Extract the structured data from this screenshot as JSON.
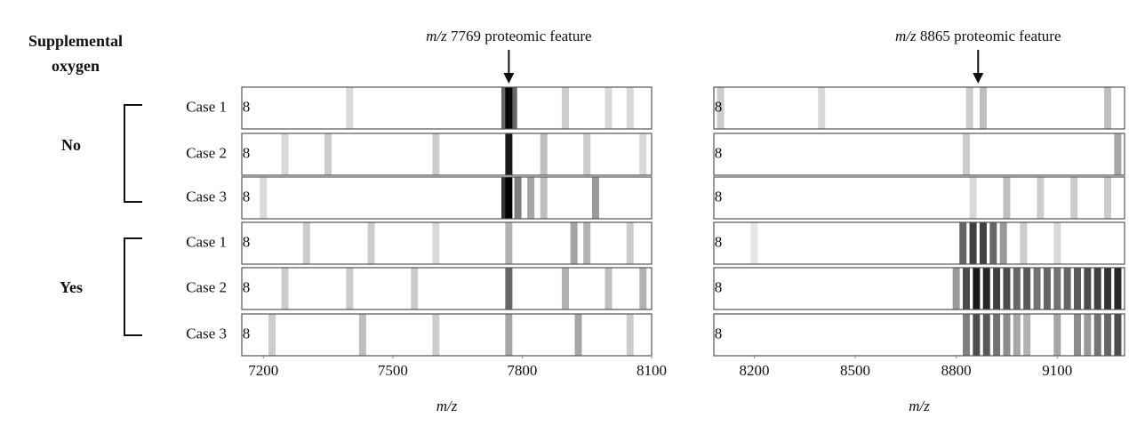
{
  "header": [
    "Supplemental",
    "oxygen"
  ],
  "groups": [
    {
      "label": "No",
      "cases": [
        "Case 1",
        "Case 2",
        "Case 3"
      ]
    },
    {
      "label": "Yes",
      "cases": [
        "Case 1",
        "Case 2",
        "Case 3"
      ]
    }
  ],
  "lane_marker": "8",
  "chart_data": [
    {
      "type": "gel",
      "title": "m/z 7769 proteomic feature",
      "annotation_x": 7769,
      "xlabel": "m/z",
      "xlim": [
        7150,
        8100
      ],
      "xticks": [
        7200,
        7500,
        7800,
        8100
      ],
      "lanes": [
        {
          "bands": [
            [
              7769,
              0.95
            ],
            [
              7760,
              0.6
            ],
            [
              7780,
              0.6
            ],
            [
              7400,
              0.15
            ],
            [
              7900,
              0.2
            ],
            [
              8000,
              0.15
            ],
            [
              8050,
              0.15
            ]
          ]
        },
        {
          "bands": [
            [
              7769,
              0.9
            ],
            [
              7250,
              0.15
            ],
            [
              7350,
              0.2
            ],
            [
              7600,
              0.2
            ],
            [
              7850,
              0.25
            ],
            [
              7950,
              0.2
            ],
            [
              8080,
              0.15
            ]
          ]
        },
        {
          "bands": [
            [
              7769,
              1
            ],
            [
              7760,
              0.8
            ],
            [
              7790,
              0.5
            ],
            [
              7820,
              0.35
            ],
            [
              7850,
              0.25
            ],
            [
              7970,
              0.4
            ],
            [
              7200,
              0.15
            ]
          ]
        },
        {
          "bands": [
            [
              7300,
              0.2
            ],
            [
              7450,
              0.2
            ],
            [
              7600,
              0.15
            ],
            [
              7769,
              0.3
            ],
            [
              7920,
              0.35
            ],
            [
              7950,
              0.3
            ],
            [
              8050,
              0.2
            ]
          ]
        },
        {
          "bands": [
            [
              7769,
              0.6
            ],
            [
              7250,
              0.2
            ],
            [
              7400,
              0.2
            ],
            [
              7550,
              0.2
            ],
            [
              7900,
              0.3
            ],
            [
              8000,
              0.25
            ],
            [
              8080,
              0.3
            ]
          ]
        },
        {
          "bands": [
            [
              7769,
              0.35
            ],
            [
              7220,
              0.2
            ],
            [
              7430,
              0.25
            ],
            [
              7600,
              0.2
            ],
            [
              7930,
              0.35
            ],
            [
              8050,
              0.2
            ]
          ]
        }
      ]
    },
    {
      "type": "gel",
      "title": "m/z 8865 proteomic feature",
      "annotation_x": 8865,
      "xlabel": "m/z",
      "xlim": [
        8080,
        9300
      ],
      "xticks": [
        8200,
        8500,
        8800,
        9100
      ],
      "lanes": [
        {
          "bands": [
            [
              8100,
              0.2
            ],
            [
              8400,
              0.15
            ],
            [
              8840,
              0.2
            ],
            [
              8880,
              0.25
            ],
            [
              9250,
              0.25
            ]
          ]
        },
        {
          "bands": [
            [
              8830,
              0.2
            ],
            [
              9280,
              0.35
            ]
          ]
        },
        {
          "bands": [
            [
              8850,
              0.15
            ],
            [
              8950,
              0.25
            ],
            [
              9050,
              0.2
            ],
            [
              9150,
              0.2
            ],
            [
              9250,
              0.2
            ]
          ]
        },
        {
          "bands": [
            [
              8200,
              0.1
            ],
            [
              8820,
              0.6
            ],
            [
              8850,
              0.75
            ],
            [
              8880,
              0.75
            ],
            [
              8910,
              0.6
            ],
            [
              8940,
              0.4
            ],
            [
              9000,
              0.2
            ],
            [
              9100,
              0.15
            ]
          ]
        },
        {
          "bands": [
            [
              8800,
              0.4
            ],
            [
              8830,
              0.7
            ],
            [
              8860,
              0.9
            ],
            [
              8890,
              0.85
            ],
            [
              8920,
              0.75
            ],
            [
              8950,
              0.7
            ],
            [
              8980,
              0.6
            ],
            [
              9010,
              0.65
            ],
            [
              9040,
              0.55
            ],
            [
              9070,
              0.6
            ],
            [
              9100,
              0.55
            ],
            [
              9130,
              0.6
            ],
            [
              9160,
              0.65
            ],
            [
              9190,
              0.7
            ],
            [
              9220,
              0.75
            ],
            [
              9250,
              0.8
            ],
            [
              9280,
              0.85
            ]
          ]
        },
        {
          "bands": [
            [
              8830,
              0.5
            ],
            [
              8860,
              0.7
            ],
            [
              8890,
              0.65
            ],
            [
              8920,
              0.55
            ],
            [
              8950,
              0.45
            ],
            [
              8980,
              0.35
            ],
            [
              9010,
              0.3
            ],
            [
              9100,
              0.35
            ],
            [
              9160,
              0.45
            ],
            [
              9190,
              0.4
            ],
            [
              9220,
              0.55
            ],
            [
              9250,
              0.6
            ],
            [
              9280,
              0.7
            ]
          ]
        }
      ]
    }
  ]
}
